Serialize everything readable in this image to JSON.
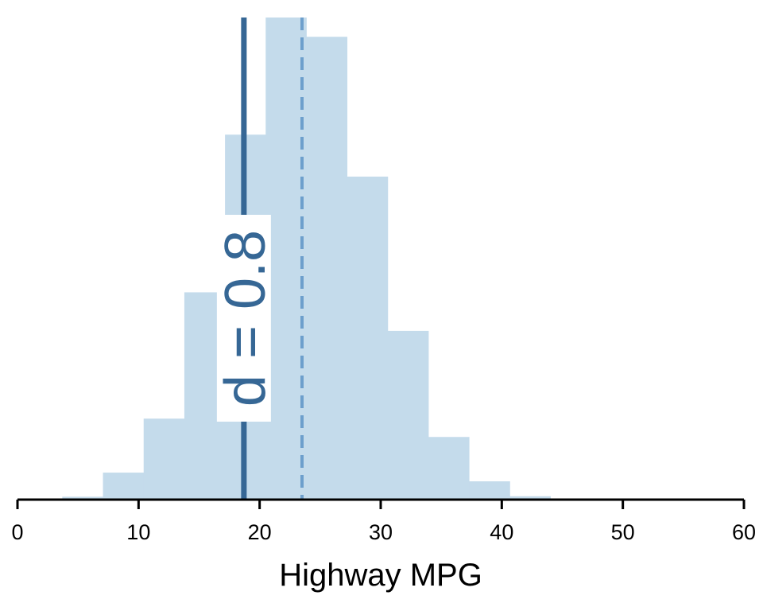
{
  "chart_data": {
    "type": "bar",
    "title": "",
    "xlabel": "Highway MPG",
    "ylabel": "",
    "xlim": [
      0,
      60
    ],
    "ylim": [
      0,
      1
    ],
    "x_ticks": [
      0,
      10,
      20,
      30,
      40,
      50,
      60
    ],
    "grid": false,
    "bin_edges": [
      3.7,
      7.06,
      10.42,
      13.78,
      17.14,
      20.5,
      23.86,
      27.22,
      30.58,
      33.94,
      37.3,
      40.66,
      44.02
    ],
    "values": [
      0.006,
      0.056,
      0.168,
      0.43,
      0.757,
      1.0,
      0.96,
      0.67,
      0.35,
      0.13,
      0.038,
      0.007
    ],
    "reference_lines": [
      {
        "x": 18.7,
        "style": "solid"
      },
      {
        "x": 23.5,
        "style": "dashed"
      }
    ],
    "annotation": {
      "text": "d = 0.8",
      "x": 18.7
    },
    "colors": {
      "bars": "#c4dbeb",
      "solid_line": "#366795",
      "dashed_line": "#6d9fcc",
      "axis": "#000000",
      "annotation": "#366795"
    }
  }
}
